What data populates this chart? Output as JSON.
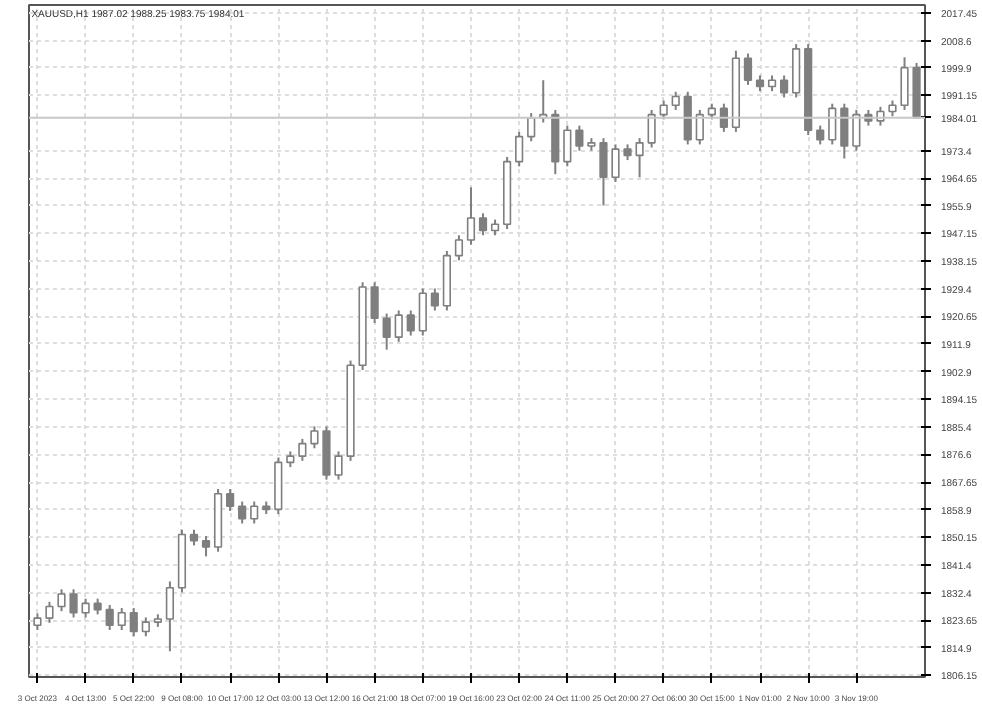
{
  "chart_data": {
    "type": "candlestick",
    "title": "XAUUSD,H1  1987.02 1988.25 1983.75 1984.01",
    "color": "#7f7f7f",
    "categories": [
      "3 Oct 2023",
      null,
      null,
      null,
      "4 Oct 13:00",
      null,
      null,
      null,
      "5 Oct 22:00",
      null,
      null,
      null,
      "9 Oct 08:00",
      null,
      null,
      null,
      "10 Oct 17:00",
      null,
      null,
      null,
      "12 Oct 03:00",
      null,
      null,
      null,
      "13 Oct 12:00",
      null,
      null,
      null,
      "16 Oct 21:00",
      null,
      null,
      null,
      "18 Oct 07:00",
      null,
      null,
      null,
      "19 Oct 16:00",
      null,
      null,
      null,
      "23 Oct 02:00",
      null,
      null,
      null,
      "24 Oct 11:00",
      null,
      null,
      null,
      "25 Oct 20:00",
      null,
      null,
      null,
      "27 Oct 06:00",
      null,
      null,
      null,
      "30 Oct 15:00",
      null,
      null,
      null,
      "1 Nov 01:00",
      null,
      null,
      null,
      "2 Nov 10:00",
      null,
      null,
      null,
      "3 Nov 19:00",
      null,
      null,
      null,
      null,
      null
    ],
    "ohlc": [
      [
        1822,
        1825.8,
        1820.5,
        1824.3
      ],
      [
        1824.3,
        1829.5,
        1822.8,
        1828
      ],
      [
        1828,
        1833.5,
        1826.5,
        1832
      ],
      [
        1832,
        1833.5,
        1824.5,
        1826
      ],
      [
        1826,
        1830.5,
        1824.5,
        1829
      ],
      [
        1829,
        1830.5,
        1825.5,
        1827
      ],
      [
        1827,
        1828.5,
        1820.5,
        1822
      ],
      [
        1822,
        1827.5,
        1820.5,
        1826
      ],
      [
        1826,
        1827.5,
        1818.5,
        1820
      ],
      [
        1820,
        1824.5,
        1818.5,
        1823
      ],
      [
        1823,
        1825.5,
        1821.5,
        1824
      ],
      [
        1824,
        1836,
        1813.7,
        1834
      ],
      [
        1834,
        1852.5,
        1832.5,
        1851
      ],
      [
        1851,
        1852.5,
        1847.5,
        1849
      ],
      [
        1849,
        1850.5,
        1844,
        1847
      ],
      [
        1847,
        1865.5,
        1845.5,
        1864
      ],
      [
        1864,
        1865.5,
        1858.5,
        1860
      ],
      [
        1860,
        1861.5,
        1854.5,
        1856
      ],
      [
        1856,
        1861.5,
        1854.5,
        1860
      ],
      [
        1860,
        1861.5,
        1857.5,
        1859
      ],
      [
        1859,
        1875.5,
        1857.5,
        1874
      ],
      [
        1874,
        1877.5,
        1872.5,
        1876
      ],
      [
        1876,
        1881.5,
        1874.5,
        1880
      ],
      [
        1880,
        1885.5,
        1878.5,
        1884
      ],
      [
        1884,
        1885.5,
        1868.5,
        1870
      ],
      [
        1870,
        1877.5,
        1868.5,
        1876
      ],
      [
        1876,
        1906.5,
        1874.5,
        1905
      ],
      [
        1905,
        1931.5,
        1903.5,
        1930
      ],
      [
        1930,
        1931.5,
        1918.5,
        1920
      ],
      [
        1920,
        1921.5,
        1910,
        1914
      ],
      [
        1914,
        1922.5,
        1912.5,
        1921
      ],
      [
        1921,
        1922.5,
        1914.5,
        1916
      ],
      [
        1916,
        1929.5,
        1914.5,
        1928
      ],
      [
        1928,
        1929.5,
        1922.5,
        1924
      ],
      [
        1924,
        1941.5,
        1922.5,
        1940
      ],
      [
        1940,
        1946.5,
        1938.5,
        1945
      ],
      [
        1945,
        1961.8,
        1943.5,
        1952
      ],
      [
        1952,
        1953.5,
        1946.5,
        1948
      ],
      [
        1948,
        1951.5,
        1946.5,
        1950
      ],
      [
        1950,
        1971.5,
        1948.5,
        1970
      ],
      [
        1970,
        1979.5,
        1968.5,
        1978
      ],
      [
        1978,
        1985.5,
        1976.5,
        1984
      ],
      [
        1984,
        1996,
        1982.5,
        1985
      ],
      [
        1985,
        1986.5,
        1966,
        1970
      ],
      [
        1970,
        1981.5,
        1968.5,
        1980
      ],
      [
        1980,
        1981.5,
        1973.5,
        1975
      ],
      [
        1975,
        1977.5,
        1973.5,
        1976
      ],
      [
        1976,
        1977.5,
        1956,
        1965
      ],
      [
        1965,
        1975.5,
        1963.5,
        1974
      ],
      [
        1974,
        1975.5,
        1970.5,
        1972
      ],
      [
        1972,
        1977.5,
        1965,
        1976
      ],
      [
        1976,
        1986.5,
        1974.5,
        1985
      ],
      [
        1985,
        1989.5,
        1983.5,
        1988
      ],
      [
        1988,
        1992.3,
        1986.5,
        1990.8
      ],
      [
        1990.8,
        1992.3,
        1975.5,
        1977
      ],
      [
        1977,
        1986.5,
        1975.5,
        1985
      ],
      [
        1985,
        1988.5,
        1983.5,
        1987
      ],
      [
        1987,
        1988.5,
        1979.5,
        1981
      ],
      [
        1981,
        2005.4,
        1979.5,
        2003
      ],
      [
        2003,
        2004.5,
        1994.5,
        1996
      ],
      [
        1996,
        1997.5,
        1992.5,
        1994
      ],
      [
        1994,
        1997.5,
        1992.5,
        1996
      ],
      [
        1996,
        1997.5,
        1990.5,
        1992
      ],
      [
        1992,
        2007.5,
        1990.5,
        2006
      ],
      [
        2006,
        2007.5,
        1978.5,
        1980
      ],
      [
        1980,
        1981.5,
        1975.5,
        1977
      ],
      [
        1977,
        1988.5,
        1975.5,
        1987
      ],
      [
        1987,
        1988.5,
        1971,
        1975
      ],
      [
        1975,
        1986.5,
        1973.5,
        1985
      ],
      [
        1985,
        1986.5,
        1981.5,
        1983
      ],
      [
        1983,
        1987.5,
        1981.5,
        1986
      ],
      [
        1986,
        1989.5,
        1984.5,
        1988
      ],
      [
        1988,
        2003.3,
        1986.5,
        2000
      ],
      [
        2000,
        2001.5,
        1983.75,
        1984.01
      ]
    ],
    "ylim": [
      1805.5,
      2020
    ],
    "yticks": [
      2017.45,
      2008.6,
      1999.9,
      1991.15,
      1973.4,
      1964.65,
      1955.9,
      1947.15,
      1938.15,
      1929.4,
      1920.65,
      1911.9,
      1902.9,
      1894.15,
      1885.4,
      1876.6,
      1867.65,
      1858.9,
      1850.15,
      1841.4,
      1832.4,
      1823.65,
      1814.9,
      1806.15
    ],
    "ref_lines": [
      {
        "axis": "y",
        "value": 1984.01,
        "label": "1984.01",
        "color": "#c8c8c8"
      }
    ],
    "grid": true
  }
}
